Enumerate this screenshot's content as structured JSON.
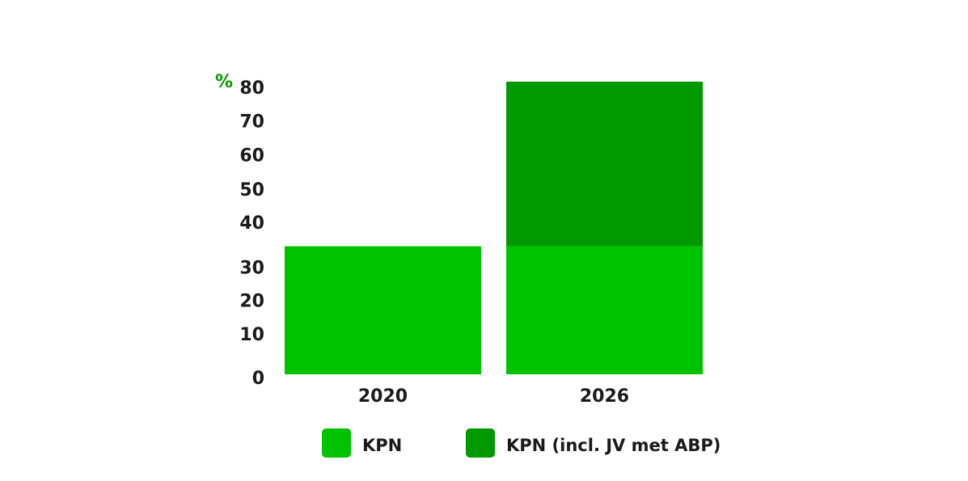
{
  "chart_data": {
    "type": "bar",
    "stacked": true,
    "categories": [
      "2020",
      "2026"
    ],
    "series": [
      {
        "name": "KPN",
        "values": [
          35,
          35
        ],
        "color": "#00c300"
      },
      {
        "name": "KPN (incl. JV met ABP)",
        "values": [
          0,
          45
        ],
        "color": "#009a00"
      }
    ],
    "y_unit": "%",
    "y_unit_color": "#009a00",
    "y_ticks": [
      0,
      10,
      20,
      30,
      40,
      50,
      60,
      70,
      80
    ],
    "ylim": [
      0,
      80
    ],
    "grid": false,
    "legend_position": "bottom"
  }
}
